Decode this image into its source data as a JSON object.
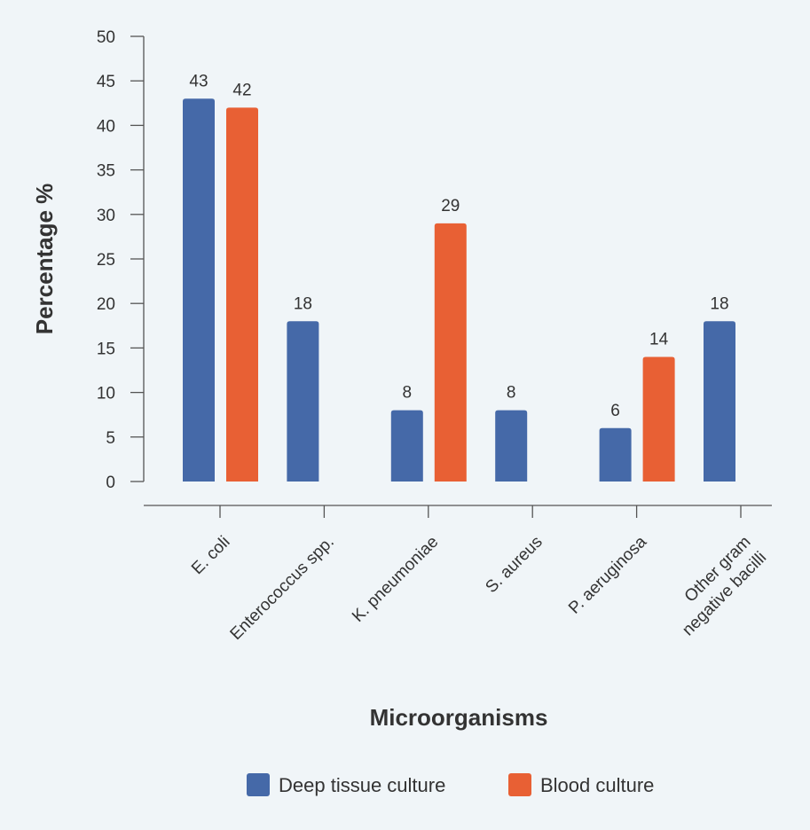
{
  "chart_data": {
    "type": "bar",
    "title": "",
    "xlabel": "Microorganisms",
    "ylabel": "Percentage %",
    "ylim": [
      0,
      50
    ],
    "yticks": [
      0,
      5,
      10,
      15,
      20,
      25,
      30,
      35,
      40,
      45,
      50
    ],
    "grid": false,
    "legend_position": "bottom",
    "categories": [
      [
        "E. coli"
      ],
      [
        "Enterococcus spp."
      ],
      [
        "K. pneumoniae"
      ],
      [
        "S. aureus"
      ],
      [
        "P. aeruginosa"
      ],
      [
        "Other gram",
        "negative bacilli"
      ]
    ],
    "series": [
      {
        "name": "Deep tissue culture",
        "color": "#4569a8",
        "values": [
          43,
          18,
          8,
          8,
          6,
          18
        ]
      },
      {
        "name": "Blood culture",
        "color": "#e86034",
        "values": [
          42,
          null,
          29,
          null,
          14,
          null
        ]
      }
    ]
  }
}
